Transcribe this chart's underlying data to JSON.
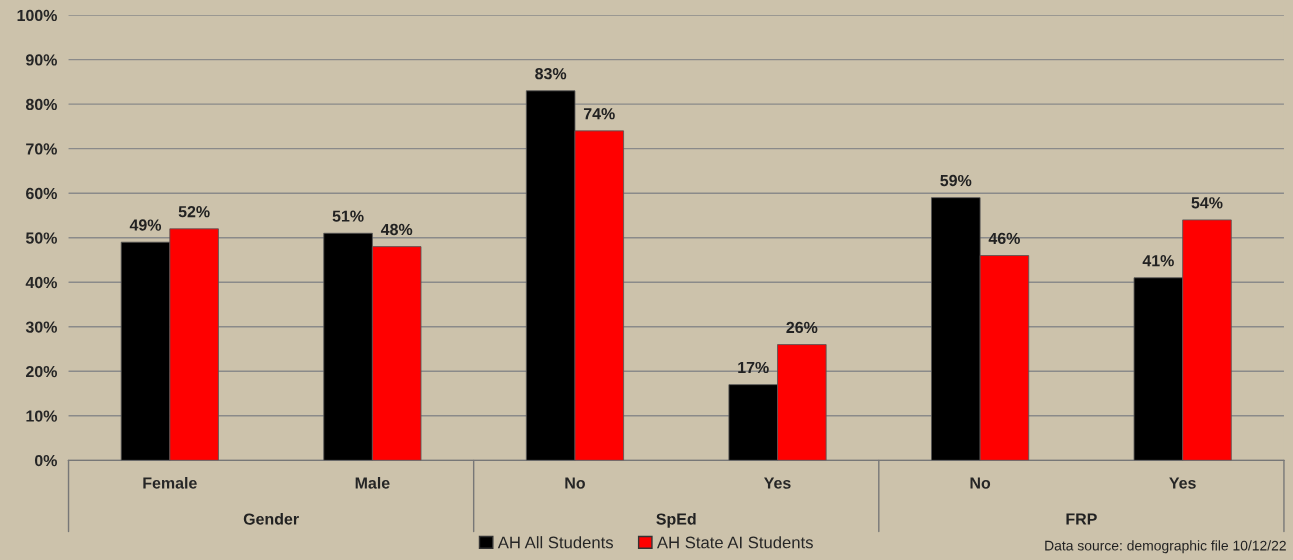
{
  "chart_data": {
    "type": "bar",
    "categories": [
      "Female",
      "Male",
      "No",
      "Yes",
      "No",
      "Yes"
    ],
    "series": [
      {
        "name": "AH All Students",
        "color": "#000000",
        "values": [
          49,
          51,
          83,
          17,
          59,
          41
        ],
        "value_labels": [
          "49%",
          "51%",
          "83%",
          "17%",
          "59%",
          "41%"
        ]
      },
      {
        "name": "AH State AI Students",
        "color": "#ff0000",
        "values": [
          52,
          48,
          74,
          26,
          46,
          54
        ],
        "value_labels": [
          "52%",
          "48%",
          "74%",
          "26%",
          "46%",
          "54%"
        ]
      }
    ],
    "ylim": [
      0,
      100
    ],
    "yticks": [
      {
        "value": 0,
        "label": "0%"
      },
      {
        "value": 10,
        "label": "10%"
      },
      {
        "value": 20,
        "label": "20%"
      },
      {
        "value": 30,
        "label": "30%"
      },
      {
        "value": 40,
        "label": "40%"
      },
      {
        "value": 50,
        "label": "50%"
      },
      {
        "value": 60,
        "label": "60%"
      },
      {
        "value": 70,
        "label": "70%"
      },
      {
        "value": 80,
        "label": "80%"
      },
      {
        "value": 90,
        "label": "90%"
      },
      {
        "value": 100,
        "label": "100%"
      }
    ],
    "grid": "y",
    "legend": "bottom",
    "annotations": [
      "Gender",
      "SpEd",
      "FRP",
      "Data source: demographic file 10/12/22"
    ]
  }
}
